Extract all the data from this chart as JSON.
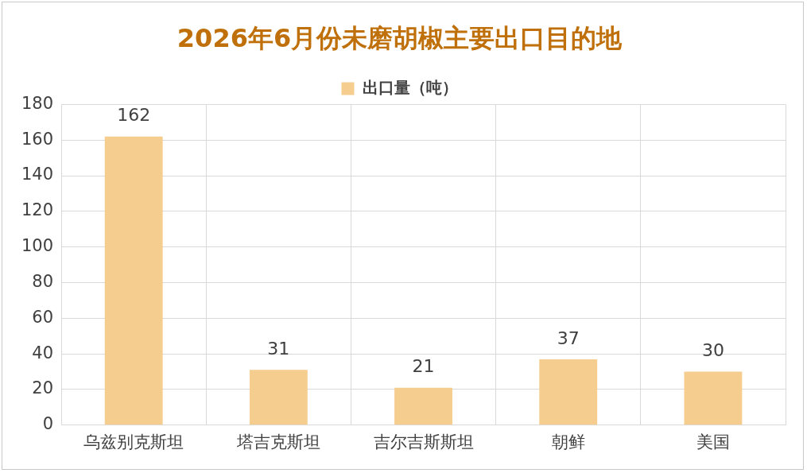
{
  "chart_data": {
    "type": "bar",
    "title": "2026年6月份未磨胡椒主要出口目的地",
    "categories": [
      "乌兹别克斯坦",
      "塔吉克斯坦",
      "吉尔吉斯斯坦",
      "朝鲜",
      "美国"
    ],
    "series": [
      {
        "name": "出口量（吨）",
        "color": "#f5cd8e",
        "values": [
          162,
          31,
          21,
          37,
          30
        ]
      }
    ],
    "ylim": [
      0,
      180
    ],
    "yticks": [
      0,
      20,
      40,
      60,
      80,
      100,
      120,
      140,
      160,
      180
    ],
    "grid": true,
    "legend": "top",
    "data_labels": true
  }
}
